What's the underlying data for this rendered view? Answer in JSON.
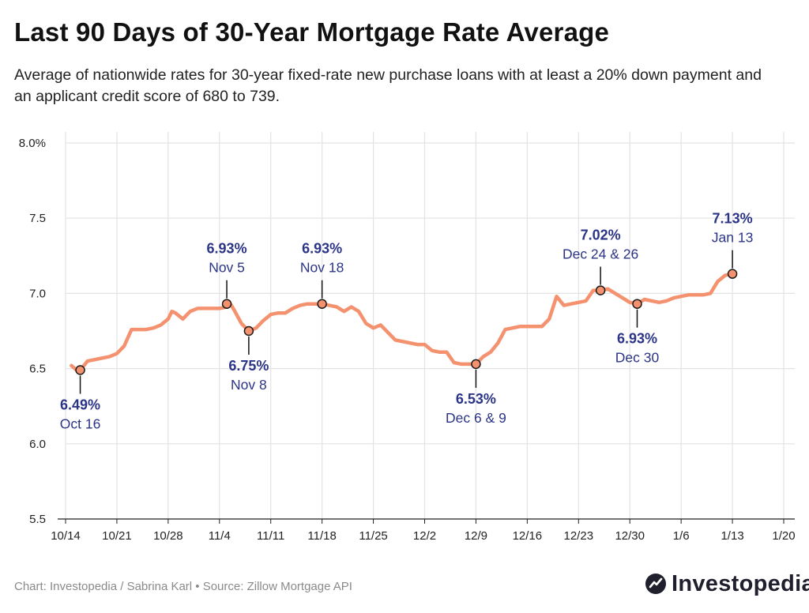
{
  "title": "Last 90 Days of 30-Year Mortgage Rate Average",
  "subtitle": "Average of nationwide rates for 30-year fixed-rate new purchase loans with at least a 20% down payment and an applicant credit score of 680 to 739.",
  "footer": {
    "source": "Chart: Investopedia / Sabrina Karl • Source: Zillow Mortgage API",
    "brand": "Investopedia"
  },
  "colors": {
    "line": "#f4926f",
    "annotation": "#2b3486",
    "grid": "#e3e3e3",
    "axis": "#222222"
  },
  "chart_data": {
    "type": "line",
    "title": "Last 90 Days of 30-Year Mortgage Rate Average",
    "xlabel": "",
    "ylabel": "",
    "grid": true,
    "ylim": [
      5.5,
      8.0
    ],
    "yticks": [
      {
        "value": 8.0,
        "label": "8.0%"
      },
      {
        "value": 7.5,
        "label": "7.5"
      },
      {
        "value": 7.0,
        "label": "7.0"
      },
      {
        "value": 6.5,
        "label": "6.5"
      },
      {
        "value": 6.0,
        "label": "6.0"
      },
      {
        "value": 5.5,
        "label": "5.5"
      }
    ],
    "xlim": [
      0,
      98
    ],
    "xticks": [
      {
        "value": 0,
        "label": "10/14"
      },
      {
        "value": 7,
        "label": "10/21"
      },
      {
        "value": 14,
        "label": "10/28"
      },
      {
        "value": 21,
        "label": "11/4"
      },
      {
        "value": 28,
        "label": "11/11"
      },
      {
        "value": 35,
        "label": "11/18"
      },
      {
        "value": 42,
        "label": "11/25"
      },
      {
        "value": 49,
        "label": "12/2"
      },
      {
        "value": 56,
        "label": "12/9"
      },
      {
        "value": 63,
        "label": "12/16"
      },
      {
        "value": 70,
        "label": "12/23"
      },
      {
        "value": 77,
        "label": "12/30"
      },
      {
        "value": 84,
        "label": "1/6"
      },
      {
        "value": 91,
        "label": "1/13"
      },
      {
        "value": 98,
        "label": "1/20"
      }
    ],
    "x_unit": "days since 10/14",
    "series": [
      {
        "name": "30-year fixed average",
        "x": [
          0.8,
          1.5,
          2,
          3,
          4,
          5,
          6,
          7,
          8,
          9,
          10,
          11,
          12,
          13,
          14,
          14.5,
          15,
          16,
          17,
          18,
          19,
          20,
          21,
          22,
          22.5,
          23,
          24,
          25,
          26,
          27,
          28,
          29,
          30,
          31,
          32,
          33,
          34,
          35,
          36,
          37,
          38,
          39,
          40,
          41,
          42,
          43,
          44,
          45,
          46,
          47,
          48,
          49,
          50,
          51,
          52,
          53,
          54,
          55,
          56,
          57,
          58,
          59,
          60,
          61,
          62,
          63,
          64,
          65,
          66,
          67,
          68,
          69,
          70,
          71,
          72,
          73,
          74,
          75,
          76,
          77,
          78,
          79,
          80,
          81,
          82,
          83,
          84,
          85,
          86,
          87,
          88,
          89,
          90,
          91
        ],
        "y": [
          6.52,
          6.49,
          6.49,
          6.55,
          6.56,
          6.57,
          6.58,
          6.6,
          6.65,
          6.76,
          6.76,
          6.76,
          6.77,
          6.79,
          6.83,
          6.88,
          6.87,
          6.83,
          6.88,
          6.9,
          6.9,
          6.9,
          6.9,
          6.91,
          6.93,
          6.89,
          6.8,
          6.75,
          6.77,
          6.82,
          6.86,
          6.87,
          6.87,
          6.9,
          6.92,
          6.93,
          6.93,
          6.93,
          6.92,
          6.91,
          6.88,
          6.91,
          6.88,
          6.8,
          6.77,
          6.79,
          6.74,
          6.69,
          6.68,
          6.67,
          6.66,
          6.66,
          6.62,
          6.61,
          6.61,
          6.54,
          6.53,
          6.53,
          6.53,
          6.58,
          6.61,
          6.67,
          6.76,
          6.77,
          6.78,
          6.78,
          6.78,
          6.78,
          6.83,
          6.98,
          6.92,
          6.93,
          6.94,
          6.95,
          7.02,
          7.02,
          7.03,
          7.0,
          6.97,
          6.94,
          6.93,
          6.96,
          6.95,
          6.94,
          6.95,
          6.97,
          6.98,
          6.99,
          6.99,
          6.99,
          7.0,
          7.08,
          7.12,
          7.13
        ]
      }
    ],
    "annotations": [
      {
        "x": 2,
        "y": 6.49,
        "rate": "6.49%",
        "date": "Oct 16",
        "position": "below"
      },
      {
        "x": 22,
        "y": 6.93,
        "rate": "6.93%",
        "date": "Nov 5",
        "position": "above"
      },
      {
        "x": 25,
        "y": 6.75,
        "rate": "6.75%",
        "date": "Nov 8",
        "position": "below"
      },
      {
        "x": 35,
        "y": 6.93,
        "rate": "6.93%",
        "date": "Nov 18",
        "position": "above"
      },
      {
        "x": 56,
        "y": 6.53,
        "rate": "6.53%",
        "date": "Dec 6 & 9",
        "position": "below"
      },
      {
        "x": 73,
        "y": 7.02,
        "rate": "7.02%",
        "date": "Dec 24 & 26",
        "position": "above"
      },
      {
        "x": 78,
        "y": 6.93,
        "rate": "6.93%",
        "date": "Dec 30",
        "position": "below"
      },
      {
        "x": 91,
        "y": 7.13,
        "rate": "7.13%",
        "date": "Jan 13",
        "position": "above"
      }
    ]
  }
}
